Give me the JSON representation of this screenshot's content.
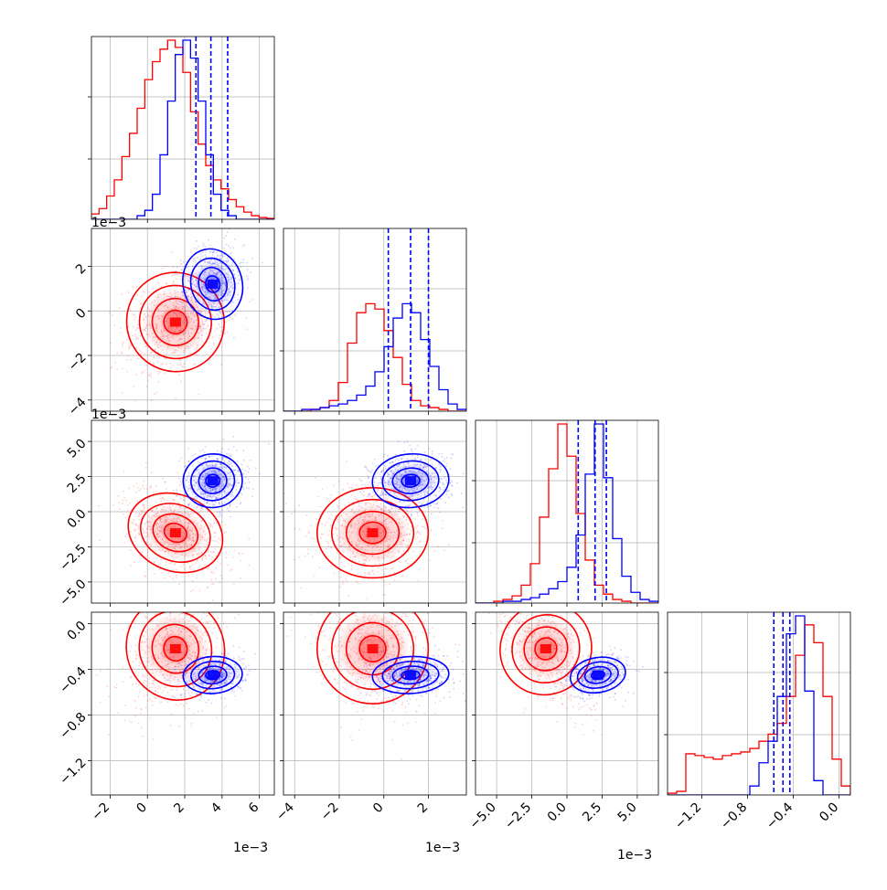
{
  "colors": {
    "series_red": "#ff0000",
    "series_blue": "#0000ff",
    "grid": "#b0b0b0",
    "axes": "#000000"
  },
  "chart_data": {
    "type": "corner",
    "grid": true,
    "dimensions": [
      {
        "range": [
          -0.003,
          0.0068
        ],
        "ticks": [
          -2,
          0,
          2,
          4,
          6
        ],
        "tick_labels": [
          "−2",
          "0",
          "2",
          "4",
          "6"
        ],
        "scale_label": "1e−3"
      },
      {
        "range": [
          -0.0045,
          0.0037
        ],
        "ticks": [
          -4,
          -2,
          0,
          2
        ],
        "tick_labels": [
          "−4",
          "−2",
          "0",
          "2"
        ],
        "scale_label": "1e−3"
      },
      {
        "range": [
          -0.0065,
          0.0065
        ],
        "ticks": [
          -5.0,
          -2.5,
          0.0,
          2.5,
          5.0
        ],
        "tick_labels": [
          "−5.0",
          "−2.5",
          "0.0",
          "2.5",
          "5.0"
        ],
        "scale_label": "1e−3"
      },
      {
        "range": [
          -1.5,
          0.1
        ],
        "ticks": [
          -1.2,
          -0.8,
          -0.4,
          0.0
        ],
        "tick_labels": [
          "−1.2",
          "−0.8",
          "−0.4",
          "0.0"
        ],
        "scale_label": ""
      }
    ],
    "series": [
      {
        "color": "#ff0000",
        "means": [
          0.0015,
          -0.0005,
          -0.0015,
          -0.22
        ],
        "histograms": [
          [
            0.03,
            0.06,
            0.13,
            0.22,
            0.35,
            0.48,
            0.62,
            0.78,
            0.88,
            0.95,
            1.0,
            0.96,
            0.82,
            0.6,
            0.42,
            0.3,
            0.22,
            0.17,
            0.11,
            0.07,
            0.04,
            0.02,
            0.01,
            0.005
          ],
          [
            0.0,
            0.0,
            0.0,
            0.01,
            0.02,
            0.06,
            0.16,
            0.38,
            0.55,
            0.6,
            0.57,
            0.45,
            0.3,
            0.15,
            0.06,
            0.03,
            0.02,
            0.01,
            0.0,
            0.0
          ],
          [
            0.0,
            0.0,
            0.01,
            0.02,
            0.04,
            0.1,
            0.22,
            0.48,
            0.75,
            1.0,
            0.82,
            0.5,
            0.24,
            0.1,
            0.05,
            0.02,
            0.01,
            0.0,
            0.0,
            0.0
          ],
          [
            0.01,
            0.02,
            0.23,
            0.22,
            0.21,
            0.2,
            0.22,
            0.23,
            0.24,
            0.26,
            0.3,
            0.34,
            0.4,
            0.55,
            0.78,
            0.95,
            0.85,
            0.55,
            0.2,
            0.05
          ]
        ]
      },
      {
        "color": "#0000ff",
        "means": [
          0.0035,
          0.0012,
          0.0022,
          -0.45
        ],
        "histograms": [
          [
            0.0,
            0.0,
            0.0,
            0.0,
            0.0,
            0.0,
            0.02,
            0.05,
            0.14,
            0.36,
            0.66,
            0.92,
            1.0,
            0.9,
            0.66,
            0.36,
            0.14,
            0.05,
            0.02,
            0.0,
            0.0,
            0.0,
            0.0,
            0.0
          ],
          [
            0.0,
            0.0,
            0.01,
            0.01,
            0.02,
            0.03,
            0.04,
            0.06,
            0.09,
            0.14,
            0.22,
            0.36,
            0.52,
            0.6,
            0.55,
            0.4,
            0.25,
            0.12,
            0.04,
            0.01
          ],
          [
            0.0,
            0.0,
            0.0,
            0.01,
            0.01,
            0.02,
            0.03,
            0.05,
            0.08,
            0.12,
            0.2,
            0.38,
            0.72,
            1.0,
            0.7,
            0.36,
            0.15,
            0.06,
            0.02,
            0.01
          ],
          [
            0.0,
            0.0,
            0.0,
            0.0,
            0.0,
            0.0,
            0.0,
            0.0,
            0.0,
            0.05,
            0.18,
            0.3,
            0.55,
            0.9,
            1.0,
            0.58,
            0.08,
            0.0,
            0.0,
            0.0
          ]
        ],
        "quantiles": [
          [
            0.0026,
            0.0034,
            0.0043
          ],
          [
            0.0002,
            0.0012,
            0.002
          ],
          [
            0.0008,
            0.002,
            0.0028
          ],
          [
            -0.57,
            -0.49,
            -0.43
          ]
        ]
      }
    ]
  }
}
